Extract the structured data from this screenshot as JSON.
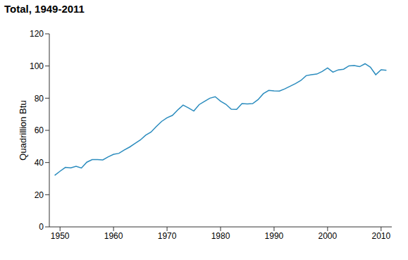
{
  "chart_data": {
    "type": "line",
    "title": "Total, 1949-2011",
    "y_label": "Quadrillion Btu",
    "x": [
      1949,
      1950,
      1951,
      1952,
      1953,
      1954,
      1955,
      1956,
      1957,
      1958,
      1959,
      1960,
      1961,
      1962,
      1963,
      1964,
      1965,
      1966,
      1967,
      1968,
      1969,
      1970,
      1971,
      1972,
      1973,
      1974,
      1975,
      1976,
      1977,
      1978,
      1979,
      1980,
      1981,
      1982,
      1983,
      1984,
      1985,
      1986,
      1987,
      1988,
      1989,
      1990,
      1991,
      1992,
      1993,
      1994,
      1995,
      1996,
      1997,
      1998,
      1999,
      2000,
      2001,
      2002,
      2003,
      2004,
      2005,
      2006,
      2007,
      2008,
      2009,
      2010,
      2011
    ],
    "values": [
      32.0,
      34.6,
      37.0,
      36.7,
      37.7,
      36.6,
      40.2,
      41.8,
      41.8,
      41.6,
      43.5,
      45.1,
      45.7,
      47.8,
      49.6,
      51.8,
      54.0,
      57.0,
      58.9,
      62.4,
      65.6,
      67.8,
      69.3,
      72.7,
      75.7,
      74.0,
      72.0,
      76.0,
      78.0,
      80.0,
      80.9,
      78.1,
      76.2,
      73.1,
      73.0,
      76.6,
      76.4,
      76.6,
      79.1,
      82.8,
      84.8,
      84.5,
      84.4,
      85.8,
      87.4,
      89.1,
      91.0,
      94.0,
      94.6,
      95.0,
      96.6,
      98.8,
      96.2,
      97.6,
      98.0,
      100.1,
      100.3,
      99.6,
      101.4,
      99.3,
      94.6,
      97.7,
      97.3
    ],
    "color": "#2b8cbe",
    "xlim": [
      1948,
      2012
    ],
    "xticks": [
      1950,
      1960,
      1970,
      1980,
      1990,
      2000,
      2010
    ],
    "ylim": [
      0,
      120
    ],
    "yticks": [
      0,
      20,
      40,
      60,
      80,
      100,
      120
    ],
    "grid": false
  }
}
